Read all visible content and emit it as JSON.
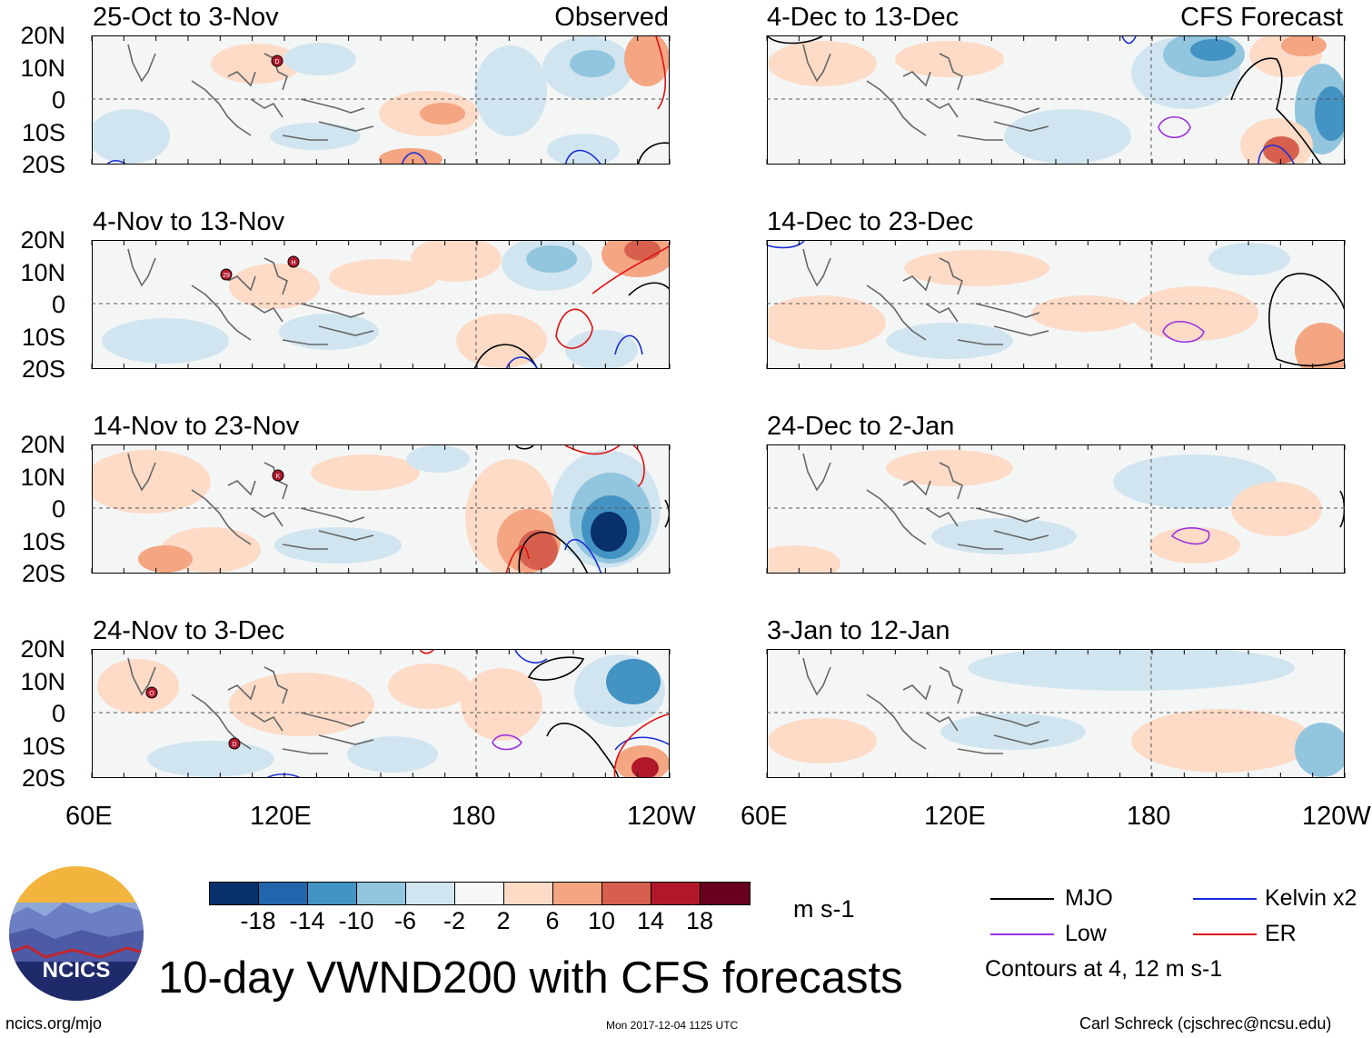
{
  "header": {
    "left_label": "Observed",
    "right_label": "CFS Forecast"
  },
  "panels_left": [
    {
      "title": "25-Oct to 3-Nov"
    },
    {
      "title": "4-Nov to 13-Nov"
    },
    {
      "title": "14-Nov to 23-Nov"
    },
    {
      "title": "24-Nov to 3-Dec"
    }
  ],
  "panels_right": [
    {
      "title": "4-Dec to 13-Dec"
    },
    {
      "title": "14-Dec to 23-Dec"
    },
    {
      "title": "24-Dec to 2-Jan"
    },
    {
      "title": "3-Jan to 12-Jan"
    }
  ],
  "lat_labels": [
    "20N",
    "10N",
    "0",
    "10S",
    "20S"
  ],
  "lon_labels": [
    "60E",
    "120E",
    "180",
    "120W"
  ],
  "colorbar": {
    "ticks": [
      "-18",
      "-14",
      "-10",
      "-6",
      "-2",
      "2",
      "6",
      "10",
      "14",
      "18"
    ],
    "colors": [
      "#08306b",
      "#2166ac",
      "#4393c3",
      "#92c5de",
      "#d1e5f0",
      "#f7f7f7",
      "#fddbc7",
      "#f4a582",
      "#d6604d",
      "#b2182b",
      "#67001f"
    ],
    "units": "m s-1"
  },
  "legend": {
    "items": [
      {
        "label": "MJO",
        "color": "#000000"
      },
      {
        "label": "Kelvin x2",
        "color": "#1a2fd6"
      },
      {
        "label": "Low",
        "color": "#9b30e0"
      },
      {
        "label": "ER",
        "color": "#e01010"
      }
    ],
    "note": "Contours at 4, 12 m s-1"
  },
  "title": "10-day VWND200 with CFS forecasts",
  "logo_text": "NCICS",
  "footer": {
    "url": "ncics.org/mjo",
    "timestamp": "Mon 2017-12-04 1125 UTC",
    "author": "Carl Schreck (cjschrec@ncsu.edu)"
  },
  "storms": [
    {
      "panel": "left-1",
      "letter": "D"
    },
    {
      "panel": "left-2",
      "letter": "29"
    },
    {
      "panel": "left-2",
      "letter": "H"
    },
    {
      "panel": "left-3",
      "letter": "K"
    },
    {
      "panel": "left-4",
      "letter": "O"
    },
    {
      "panel": "left-4",
      "letter": "D"
    }
  ]
}
